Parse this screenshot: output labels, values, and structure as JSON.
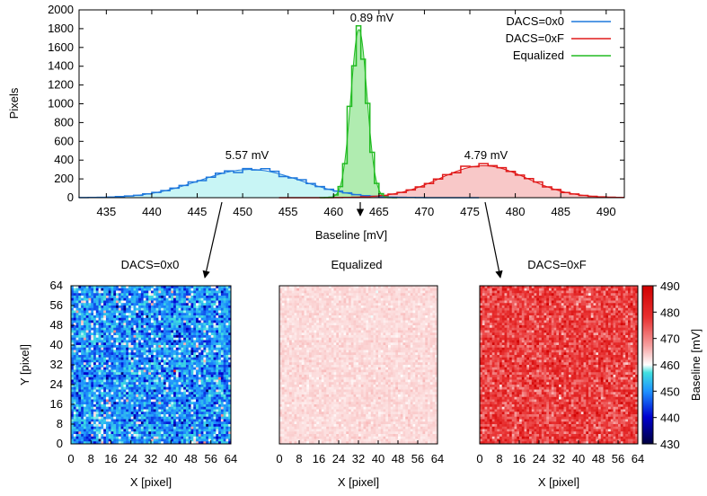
{
  "chart_data": [
    {
      "type": "histogram",
      "xlabel": "Baseline [mV]",
      "ylabel": "Pixels",
      "xlim": [
        432,
        492
      ],
      "ylim": [
        0,
        2000
      ],
      "xticks": [
        435,
        440,
        445,
        450,
        455,
        460,
        465,
        470,
        475,
        480,
        485,
        490
      ],
      "yticks": [
        0,
        200,
        400,
        600,
        800,
        1000,
        1200,
        1400,
        1600,
        1800,
        2000
      ],
      "legend_position": "top-right",
      "series": [
        {
          "name": "DACS=0x0",
          "color": "#1e78dc",
          "fill": "#c8f5f5",
          "mean": 450.8,
          "sigma_label": "5.57 mV",
          "peak": 300,
          "sigma": 5.57
        },
        {
          "name": "DACS=0xF",
          "color": "#e01a1a",
          "fill": "#f8c8c8",
          "mean": 476.5,
          "sigma_label": "4.79 mV",
          "peak": 340,
          "sigma": 4.79
        },
        {
          "name": "Equalized",
          "color": "#22bb22",
          "fill": "#b0ecb0",
          "mean": 462.8,
          "sigma_label": "0.89 mV",
          "peak": 1790,
          "sigma": 0.89
        }
      ]
    },
    {
      "type": "heatmap",
      "maps": [
        {
          "title": "DACS=0x0",
          "xlabel": "X [pixel]",
          "ylabel": "Y [pixel]",
          "mean_mV": 450.8,
          "sigma_mV": 5.57
        },
        {
          "title": "Equalized",
          "xlabel": "X [pixel]",
          "ylabel": "",
          "mean_mV": 462.8,
          "sigma_mV": 0.89
        },
        {
          "title": "DACS=0xF",
          "xlabel": "X [pixel]",
          "ylabel": "",
          "mean_mV": 476.5,
          "sigma_mV": 4.79
        }
      ],
      "grid_size": 64,
      "axis_ticks": [
        0,
        8,
        16,
        24,
        32,
        40,
        48,
        56,
        64
      ],
      "colorbar": {
        "label": "Baseline [mV]",
        "range": [
          430,
          490
        ],
        "ticks": [
          430,
          440,
          450,
          460,
          470,
          480,
          490
        ]
      }
    }
  ]
}
